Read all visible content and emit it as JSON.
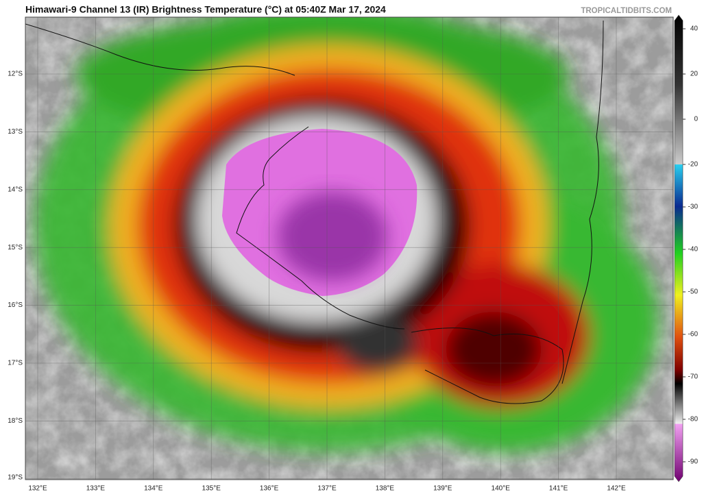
{
  "header": {
    "title": "Himawari-9 Channel 13 (IR) Brightness Temperature (°C) at 05:40Z Mar 17, 2024",
    "credit": "TROPICALTIDBITS.COM"
  },
  "map": {
    "lat_labels": [
      "12°S",
      "13°S",
      "14°S",
      "15°S",
      "16°S",
      "17°S",
      "18°S",
      "19°S"
    ],
    "lon_labels": [
      "132°E",
      "133°E",
      "134°E",
      "135°E",
      "136°E",
      "137°E",
      "138°E",
      "139°E",
      "140°E",
      "141°E",
      "142°E"
    ]
  },
  "colorbar": {
    "ticks": [
      40,
      20,
      0,
      -20,
      -30,
      -40,
      -50,
      -60,
      -70,
      -80,
      -90
    ]
  }
}
